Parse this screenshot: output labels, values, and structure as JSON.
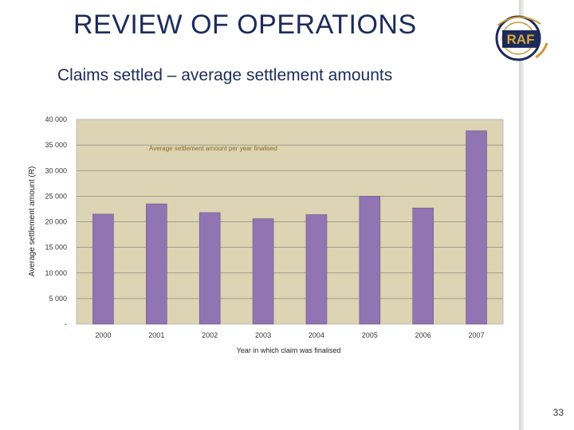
{
  "slide": {
    "title": "REVIEW OF OPERATIONS",
    "subtitle": "Claims settled – average settlement amounts",
    "page_number": "33",
    "logo_text": "RAF"
  },
  "colors": {
    "title": "#1c2b5a",
    "plot_background": "#dcd4b2",
    "bar": "#9174b2",
    "gridline": "#8a8a8a"
  },
  "chart_data": {
    "type": "bar",
    "annotation": "Average settlement amount per year finalised",
    "xlabel": "Year in which claim was finalised",
    "ylabel": "Average settlement amount (R)",
    "categories": [
      "2000",
      "2001",
      "2002",
      "2003",
      "2004",
      "2005",
      "2006",
      "2007"
    ],
    "values": [
      21500,
      23500,
      21800,
      20600,
      21400,
      25000,
      22700,
      37800
    ],
    "ylim": [
      0,
      40000
    ],
    "yticks": [
      0,
      5000,
      10000,
      15000,
      20000,
      25000,
      30000,
      35000,
      40000
    ],
    "ytick_labels": [
      "-",
      "5 000",
      "10 000",
      "15 000",
      "20 000",
      "25 000",
      "30 000",
      "35 000",
      "40 000"
    ],
    "grid": true,
    "legend": "none"
  }
}
